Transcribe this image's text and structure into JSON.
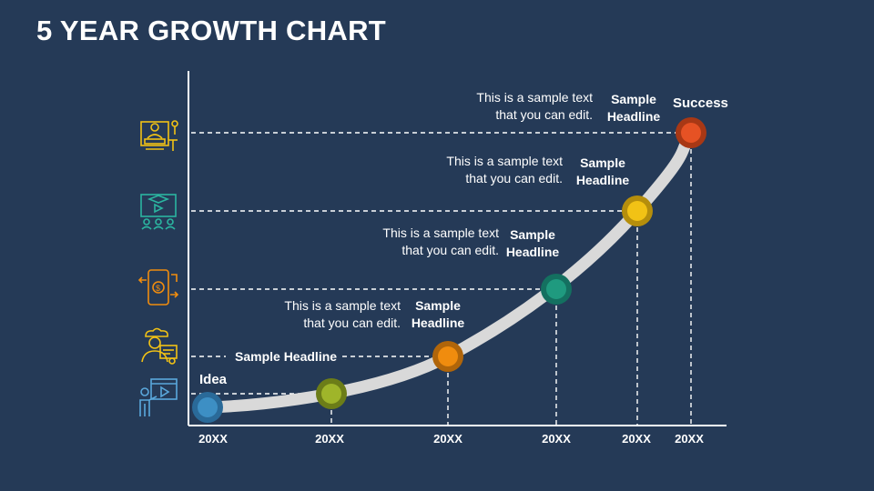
{
  "title": "5 YEAR GROWTH CHART",
  "stages": [
    {
      "year": "20XX",
      "headline": "Idea",
      "text": "",
      "color": "#3d8fc4",
      "ring": "#2a6a99"
    },
    {
      "year": "20XX",
      "headline": "Sample Headline",
      "text": "",
      "color": "#9fb52a",
      "ring": "#6c7d18"
    },
    {
      "year": "20XX",
      "headline": "Sample Headline",
      "text": "This is a sample text that you can edit.",
      "color": "#f08c0e",
      "ring": "#b0650a"
    },
    {
      "year": "20XX",
      "headline": "Sample Headline",
      "text": "This is a sample text that you can edit.",
      "color": "#1f9a7f",
      "ring": "#147060"
    },
    {
      "year": "20XX",
      "headline": "Sample Headline",
      "text": "This is a sample text that you can edit.",
      "color": "#f2c215",
      "ring": "#b58e0c"
    },
    {
      "year": "20XX",
      "headline": "Success",
      "text": "This is a sample text that you can edit.",
      "color": "#e65224",
      "ring": "#a83815"
    }
  ],
  "icons": [
    "presentation-icon",
    "video-lesson-icon",
    "mobile-money-icon",
    "chef-certificate-icon",
    "online-training-icon"
  ]
}
